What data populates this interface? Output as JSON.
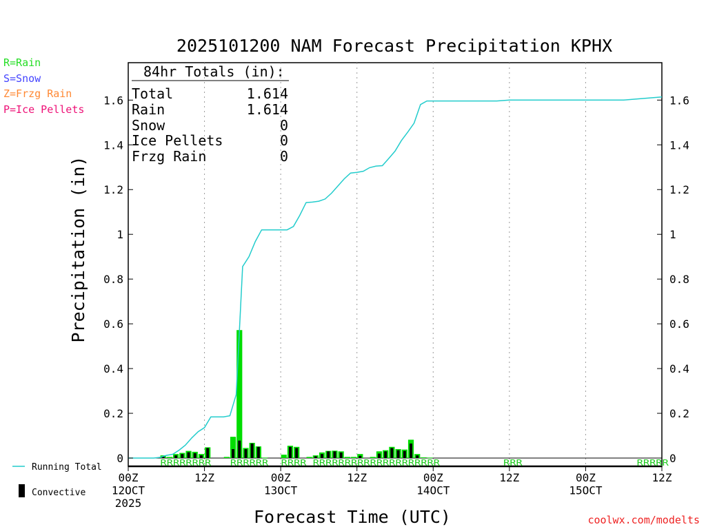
{
  "title": "2025101200 NAM Forecast Precipitation KPHX",
  "legend_ptypes": [
    {
      "label": "R=Rain",
      "color": "#22dd22"
    },
    {
      "label": "S=Snow",
      "color": "#4444ff"
    },
    {
      "label": "Z=Frzg Rain",
      "color": "#ff8833"
    },
    {
      "label": "P=Ice Pellets",
      "color": "#ee1177"
    }
  ],
  "legend_lines": {
    "running_total": "Running Total",
    "convective": "Convective"
  },
  "totals": {
    "heading": "84hr Totals (in):",
    "rows": [
      {
        "label": "Total",
        "value": "1.614"
      },
      {
        "label": "Rain",
        "value": "1.614"
      },
      {
        "label": "Snow",
        "value": "0"
      },
      {
        "label": "Ice Pellets",
        "value": "0"
      },
      {
        "label": "Frzg Rain",
        "value": "0"
      }
    ]
  },
  "credit": "coolwx.com/modelts",
  "colors": {
    "running_total": "#22cccc",
    "precip_bar": "#00dd00",
    "convective_bar": "#000000",
    "ptype_text": "#22cc22",
    "credit": "#ee2222"
  },
  "chart_data": {
    "type": "bar",
    "title": "2025101200 NAM Forecast Precipitation KPHX",
    "xlabel": "Forecast Time (UTC)",
    "ylabel": "Precipitation (in)",
    "xlim": [
      0,
      84
    ],
    "ylim": [
      -0.04,
      1.8
    ],
    "yticks": [
      0,
      0.2,
      0.4,
      0.6,
      0.8,
      1,
      1.2,
      1.4,
      1.6
    ],
    "ytick_labels": [
      "0",
      "0.2",
      "0.4",
      "0.6",
      "0.8",
      "1",
      "1.2",
      "1.4",
      "1.6"
    ],
    "grid": "vertical dotted at 12-hour ticks",
    "xticks": [
      {
        "hour": 0,
        "lines": [
          "00Z",
          "12OCT",
          "2025"
        ]
      },
      {
        "hour": 12,
        "lines": [
          "12Z"
        ]
      },
      {
        "hour": 24,
        "lines": [
          "00Z",
          "13OCT"
        ]
      },
      {
        "hour": 36,
        "lines": [
          "12Z"
        ]
      },
      {
        "hour": 48,
        "lines": [
          "00Z",
          "14OCT"
        ]
      },
      {
        "hour": 60,
        "lines": [
          "12Z"
        ]
      },
      {
        "hour": 72,
        "lines": [
          "00Z",
          "15OCT"
        ]
      },
      {
        "hour": 84,
        "lines": [
          "12Z"
        ]
      }
    ],
    "series": [
      {
        "name": "Hourly Precipitation",
        "hours": [
          6,
          7,
          8,
          9,
          10,
          11,
          12,
          13,
          16,
          17,
          18,
          19,
          20,
          21,
          22,
          25,
          26,
          27,
          29,
          30,
          31,
          32,
          33,
          34,
          35,
          36,
          37,
          39,
          40,
          41,
          42,
          43,
          44,
          45,
          46,
          47,
          48
        ],
        "values": [
          0.012,
          0.005,
          0.018,
          0.023,
          0.032,
          0.028,
          0.018,
          0.048,
          0.005,
          0.095,
          0.572,
          0.045,
          0.068,
          0.052,
          0.002,
          0.015,
          0.055,
          0.05,
          0.005,
          0.012,
          0.025,
          0.032,
          0.033,
          0.03,
          0.005,
          0.005,
          0.018,
          0.005,
          0.03,
          0.035,
          0.05,
          0.04,
          0.038,
          0.082,
          0.018,
          0.003,
          0.002
        ]
      },
      {
        "name": "Convective",
        "hours": [
          6,
          8,
          9,
          10,
          11,
          12,
          13,
          17,
          18,
          19,
          20,
          21,
          26,
          27,
          30,
          31,
          32,
          33,
          34,
          37,
          40,
          41,
          42,
          43,
          44,
          45,
          46
        ],
        "values": [
          0.008,
          0.012,
          0.018,
          0.026,
          0.022,
          0.012,
          0.045,
          0.04,
          0.078,
          0.04,
          0.065,
          0.05,
          0.05,
          0.045,
          0.008,
          0.018,
          0.03,
          0.03,
          0.025,
          0.01,
          0.02,
          0.03,
          0.045,
          0.035,
          0.032,
          0.065,
          0.012
        ]
      },
      {
        "name": "Running Total",
        "hours": [
          0,
          1,
          2,
          3,
          4,
          5,
          6,
          7,
          8,
          9,
          10,
          11,
          12,
          13,
          14,
          15,
          16,
          17,
          18,
          19,
          20,
          21,
          22,
          23,
          24,
          25,
          26,
          27,
          28,
          29,
          30,
          31,
          32,
          33,
          34,
          35,
          36,
          37,
          38,
          39,
          40,
          41,
          42,
          43,
          44,
          45,
          46,
          47,
          48,
          49,
          50,
          55,
          58,
          60,
          64,
          70,
          78,
          84
        ],
        "values": [
          0,
          0,
          0,
          0,
          0,
          0.003,
          0.012,
          0.017,
          0.035,
          0.058,
          0.09,
          0.118,
          0.136,
          0.184,
          0.184,
          0.184,
          0.189,
          0.284,
          0.856,
          0.9,
          0.968,
          1.02,
          1.02,
          1.02,
          1.02,
          1.02,
          1.035,
          1.085,
          1.142,
          1.144,
          1.148,
          1.158,
          1.184,
          1.216,
          1.248,
          1.274,
          1.277,
          1.282,
          1.298,
          1.305,
          1.307,
          1.339,
          1.372,
          1.419,
          1.457,
          1.497,
          1.58,
          1.596,
          1.596,
          1.596,
          1.596,
          1.596,
          1.596,
          1.6,
          1.6,
          1.6,
          1.6,
          1.614
        ]
      }
    ],
    "ptype_label_groups": [
      {
        "start_hour": 5,
        "text": "RRRRRRRR"
      },
      {
        "start_hour": 16,
        "text": "RRRRRR"
      },
      {
        "start_hour": 24,
        "text": "RRRR"
      },
      {
        "start_hour": 29,
        "text": "RRRRRRRRRRRRRRRRRRRR"
      },
      {
        "start_hour": 59,
        "text": "RRR"
      },
      {
        "start_hour": 80,
        "text": "RRRRR"
      }
    ]
  }
}
